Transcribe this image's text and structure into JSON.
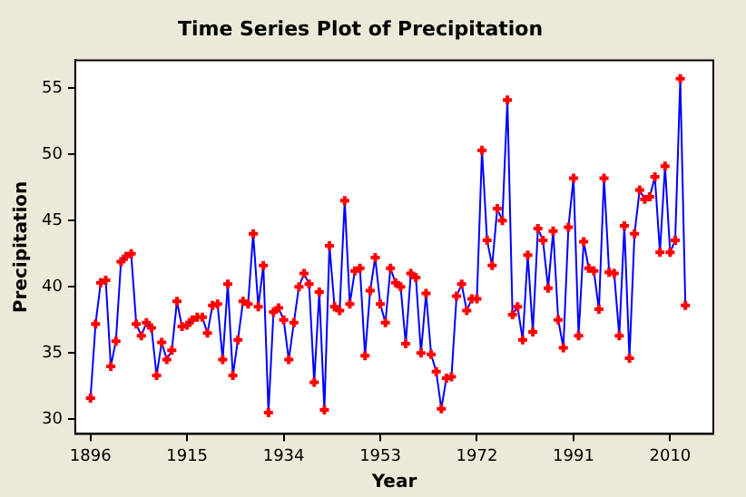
{
  "chart_data": {
    "type": "line",
    "title": "Time Series Plot of Precipitation",
    "xlabel": "Year",
    "ylabel": "Precipitation",
    "x": [
      1896,
      1897,
      1898,
      1899,
      1900,
      1901,
      1902,
      1903,
      1904,
      1905,
      1906,
      1907,
      1908,
      1909,
      1910,
      1911,
      1912,
      1913,
      1914,
      1915,
      1916,
      1917,
      1918,
      1919,
      1920,
      1921,
      1922,
      1923,
      1924,
      1925,
      1926,
      1927,
      1928,
      1929,
      1930,
      1931,
      1932,
      1933,
      1934,
      1935,
      1936,
      1937,
      1938,
      1939,
      1940,
      1941,
      1942,
      1943,
      1944,
      1945,
      1946,
      1947,
      1948,
      1949,
      1950,
      1951,
      1952,
      1953,
      1954,
      1955,
      1956,
      1957,
      1958,
      1959,
      1960,
      1961,
      1962,
      1963,
      1964,
      1965,
      1966,
      1967,
      1968,
      1969,
      1970,
      1971,
      1972,
      1973,
      1974,
      1975,
      1976,
      1977,
      1978,
      1979,
      1980,
      1981,
      1982,
      1983,
      1984,
      1985,
      1986,
      1987,
      1988,
      1989,
      1990,
      1991,
      1992,
      1993,
      1994,
      1995,
      1996,
      1997,
      1998,
      1999,
      2000,
      2001,
      2002,
      2003,
      2004,
      2005,
      2006,
      2007,
      2008,
      2009,
      2010,
      2011,
      2012,
      2013
    ],
    "series": [
      {
        "color": "#0000ff",
        "values": [
          31.6,
          37.2,
          40.3,
          40.5,
          34.0,
          35.9,
          41.9,
          42.3,
          42.5,
          37.2,
          36.3,
          37.3,
          36.9,
          33.3,
          35.8,
          34.5,
          35.2,
          38.9,
          37.0,
          37.1,
          37.5,
          37.7,
          37.7,
          36.5,
          38.6,
          38.7,
          34.5,
          40.2,
          33.3,
          36.0,
          38.9,
          38.7,
          44.0,
          38.5,
          41.6,
          30.5,
          38.1,
          38.4,
          37.5,
          34.5,
          37.3,
          40.0,
          41.0,
          40.2,
          32.8,
          39.6,
          30.7,
          43.1,
          38.5,
          38.2,
          46.5,
          38.7,
          41.2,
          41.4,
          34.8,
          39.7,
          42.2,
          38.7,
          37.3,
          41.4,
          40.3,
          40.0,
          35.7,
          41.0,
          40.7,
          35.0,
          39.5,
          34.9,
          33.6,
          30.8,
          33.1,
          33.2,
          39.3,
          40.2,
          38.2,
          39.1,
          39.1,
          50.3,
          43.5,
          41.6,
          45.9,
          45.0,
          54.1,
          37.9,
          38.5,
          36.0,
          42.4,
          36.6,
          44.4,
          43.5,
          39.9,
          44.2,
          37.5,
          35.4,
          44.5,
          48.2,
          36.3,
          43.4,
          41.4,
          41.2,
          38.3,
          48.2,
          41.1,
          41.0,
          36.3,
          44.6,
          34.6,
          44.0,
          47.3,
          46.6,
          46.8,
          48.3,
          42.6,
          49.1,
          42.6,
          43.5,
          55.7,
          38.6
        ],
        "colors": [
          "#ff0000",
          "#ff0000",
          "#ff0000",
          "#ff0000",
          "#ff0000",
          "#ff0000",
          "#ff0000",
          "#ff0000",
          "#ff0000",
          "#ff0000",
          "#ff0000",
          "#ff0000",
          "#ff0000",
          "#ff0000",
          "#ff0000",
          "#ff0000",
          "#ff0000",
          "#ff0000",
          "#ff0000",
          "#ff0000",
          "#ff0000",
          "#ff0000",
          "#ff0000",
          "#ff0000",
          "#ff0000",
          "#ff0000",
          "#ff0000",
          "#ff0000",
          "#ff0000",
          "#ff0000",
          "#ff0000",
          "#ff0000",
          "#ff0000",
          "#ff0000",
          "#ff0000",
          "#ff0000",
          "#ff0000",
          "#ff0000",
          "#ff0000",
          "#ff0000",
          "#ff0000",
          "#ff0000",
          "#ff0000",
          "#ff0000",
          "#ff0000",
          "#ff0000",
          "#ff0000",
          "#ff0000",
          "#ff0000",
          "#ff0000",
          "#ff0000",
          "#ff0000",
          "#ff0000",
          "#ff0000",
          "#ff0000",
          "#ff0000",
          "#ff0000",
          "#ff0000",
          "#ff0000",
          "#ff0000",
          "#ff0000",
          "#ff0000",
          "#ff0000",
          "#ff0000",
          "#ff0000",
          "#ff0000",
          "#ff0000",
          "#ff0000",
          "#ff0000",
          "#ff0000",
          "#ff0000",
          "#ff0000",
          "#ff0000",
          "#ff0000",
          "#ff0000",
          "#ff0000",
          "#ff0000",
          "#ff0000",
          "#ff0000",
          "#ff0000",
          "#ff0000",
          "#ff0000",
          "#ff0000",
          "#ff0000",
          "#ff0000",
          "#ff0000",
          "#ff0000",
          "#ff0000",
          "#ff0000",
          "#ff0000",
          "#ff0000",
          "#ff0000",
          "#ff0000",
          "#ff0000",
          "#ff0000",
          "#ff0000",
          "#ff0000",
          "#ff0000",
          "#ff0000",
          "#ff0000",
          "#ff0000",
          "#ff0000",
          "#ff0000",
          "#ff0000",
          "#ff0000",
          "#ff0000",
          "#ff0000",
          "#ff0000",
          "#ff0000",
          "#ff0000",
          "#ff0000",
          "#ff0000",
          "#ff0000",
          "#ff0000",
          "#ff0000",
          "#ff0000",
          "#ff0000",
          "#ff0000"
        ]
      }
    ],
    "marker": "cross",
    "line_style": "solid",
    "xlim": [
      1893,
      2018.5
    ],
    "xticks": [
      1896,
      1915,
      1934,
      1953,
      1972,
      1991,
      2010
    ],
    "ylim": [
      28.9,
      57.1
    ],
    "yticks": [
      30,
      35,
      40,
      45,
      50,
      55
    ],
    "grid": false,
    "legend": false
  }
}
